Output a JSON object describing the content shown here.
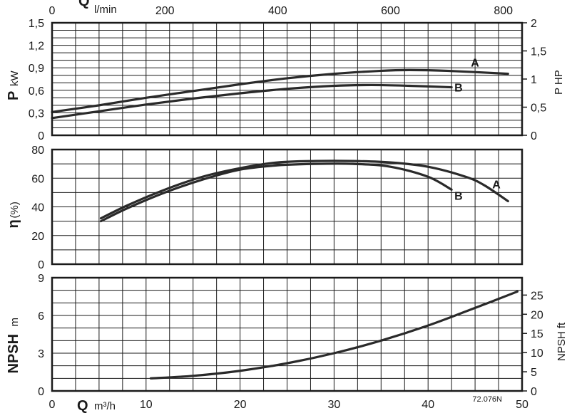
{
  "chart_data": {
    "type": "line",
    "top_axis": {
      "label": "Q",
      "unit": "l/min",
      "ticks": [
        0,
        200,
        400,
        600,
        800
      ],
      "range": [
        0,
        833.3
      ]
    },
    "bottom_axis": {
      "label": "Q",
      "unit": "m³/h",
      "ticks": [
        0,
        10,
        20,
        30,
        40,
        50
      ],
      "range": [
        0,
        50
      ]
    },
    "code": "72.076N",
    "panels": [
      {
        "id": "power",
        "ylabel": "P",
        "yunit": "kW",
        "ylim": [
          0,
          1.5
        ],
        "yticks": [
          "1,5",
          "1,2",
          "0,9",
          "0,6",
          "0,3",
          "0"
        ],
        "ytick_values": [
          1.5,
          1.2,
          0.9,
          0.6,
          0.3,
          0
        ],
        "right_label": "P HP",
        "right_ticks": [
          "2",
          "1,5",
          "1",
          "0,5",
          "0"
        ],
        "right_tick_values": [
          2,
          1.5,
          1,
          0.5,
          0
        ],
        "right_to_left_factor": 0.75,
        "series": [
          {
            "name": "A",
            "x": [
              0,
              5,
              10,
              15,
              20,
              25,
              30,
              35,
              38,
              42,
              48.5
            ],
            "y": [
              0.31,
              0.4,
              0.5,
              0.59,
              0.68,
              0.76,
              0.82,
              0.86,
              0.87,
              0.86,
              0.82
            ]
          },
          {
            "name": "B",
            "x": [
              0,
              5,
              10,
              15,
              20,
              25,
              30,
              34,
              38,
              42.5
            ],
            "y": [
              0.23,
              0.32,
              0.41,
              0.49,
              0.56,
              0.62,
              0.66,
              0.67,
              0.66,
              0.64
            ]
          }
        ]
      },
      {
        "id": "efficiency",
        "ylabel": "η",
        "yunit": "(%)",
        "ylim": [
          0,
          80
        ],
        "yticks": [
          "80",
          "60",
          "40",
          "20",
          "0"
        ],
        "ytick_values": [
          80,
          60,
          40,
          20,
          0
        ],
        "series": [
          {
            "name": "A",
            "x": [
              5.2,
              8,
              12,
              16,
              20,
              24,
              28,
              32,
              36,
              40,
              44,
              46,
              48.5
            ],
            "y": [
              32,
              41,
              52,
              61,
              67,
              71,
              72,
              72,
              71,
              68,
              61,
              55,
              44
            ]
          },
          {
            "name": "B",
            "x": [
              5.2,
              8,
              12,
              16,
              20,
              24,
              28,
              32,
              36,
              40,
              42.5
            ],
            "y": [
              30,
              39,
              50,
              59,
              66,
              69,
              70,
              70,
              68,
              61,
              52
            ]
          }
        ]
      },
      {
        "id": "npsh",
        "ylabel": "NPSH",
        "yunit": "m",
        "ylim": [
          0,
          9
        ],
        "yticks": [
          "9",
          "6",
          "3",
          "0"
        ],
        "ytick_values": [
          9,
          6,
          3,
          0
        ],
        "right_label": "NPSH ft",
        "right_ticks": [
          "25",
          "20",
          "15",
          "10",
          "5",
          "0"
        ],
        "right_tick_values": [
          25,
          20,
          15,
          10,
          5,
          0
        ],
        "right_to_left_factor": 0.3048,
        "series": [
          {
            "name": "",
            "x": [
              10.5,
              15,
              20,
              25,
              30,
              35,
              40,
              45,
              49.5
            ],
            "y": [
              1.0,
              1.2,
              1.6,
              2.2,
              3.0,
              4.0,
              5.2,
              6.6,
              7.9
            ]
          }
        ]
      }
    ]
  }
}
